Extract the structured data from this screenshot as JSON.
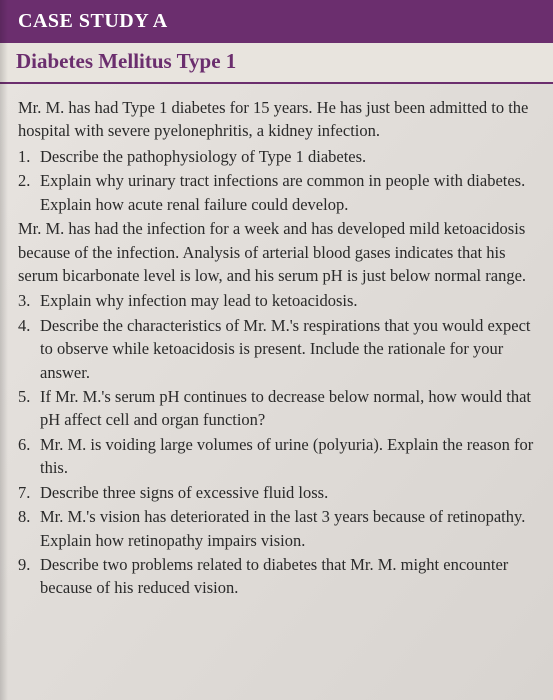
{
  "header": "CASE STUDY A",
  "title": "Diabetes Mellitus Type 1",
  "intro1": "Mr. M. has had Type 1 diabetes for 15 years. He has just been admitted to the hospital with severe pyelonephritis, a kidney infection.",
  "q1_num": "1.",
  "q1": "Describe the pathophysiology of Type 1 diabetes.",
  "q2_num": "2.",
  "q2": "Explain why urinary tract infections are common in people with diabetes. Explain how acute renal failure could develop.",
  "intro2": "Mr. M. has had the infection for a week and has developed mild ketoacidosis because of the infection. Analysis of arterial blood gases indicates that his serum bicarbonate level is low, and his serum pH is just below normal range.",
  "q3_num": "3.",
  "q3": "Explain why infection may lead to ketoacidosis.",
  "q4_num": "4.",
  "q4": "Describe the characteristics of Mr. M.'s respirations that you would expect to observe while ketoacidosis is present. Include the rationale for your answer.",
  "q5_num": "5.",
  "q5": "If Mr. M.'s serum pH continues to decrease below normal, how would that pH affect cell and organ function?",
  "q6_num": "6.",
  "q6": "Mr. M. is voiding large volumes of urine (polyuria). Explain the reason for this.",
  "q7_num": "7.",
  "q7": "Describe three signs of excessive fluid loss.",
  "q8_num": "8.",
  "q8": "Mr. M.'s vision has deteriorated in the last 3 years because of retinopathy. Explain how retinopathy impairs vision.",
  "q9_num": "9.",
  "q9": "Describe two problems related to diabetes that Mr. M. might encounter because of his reduced vision."
}
